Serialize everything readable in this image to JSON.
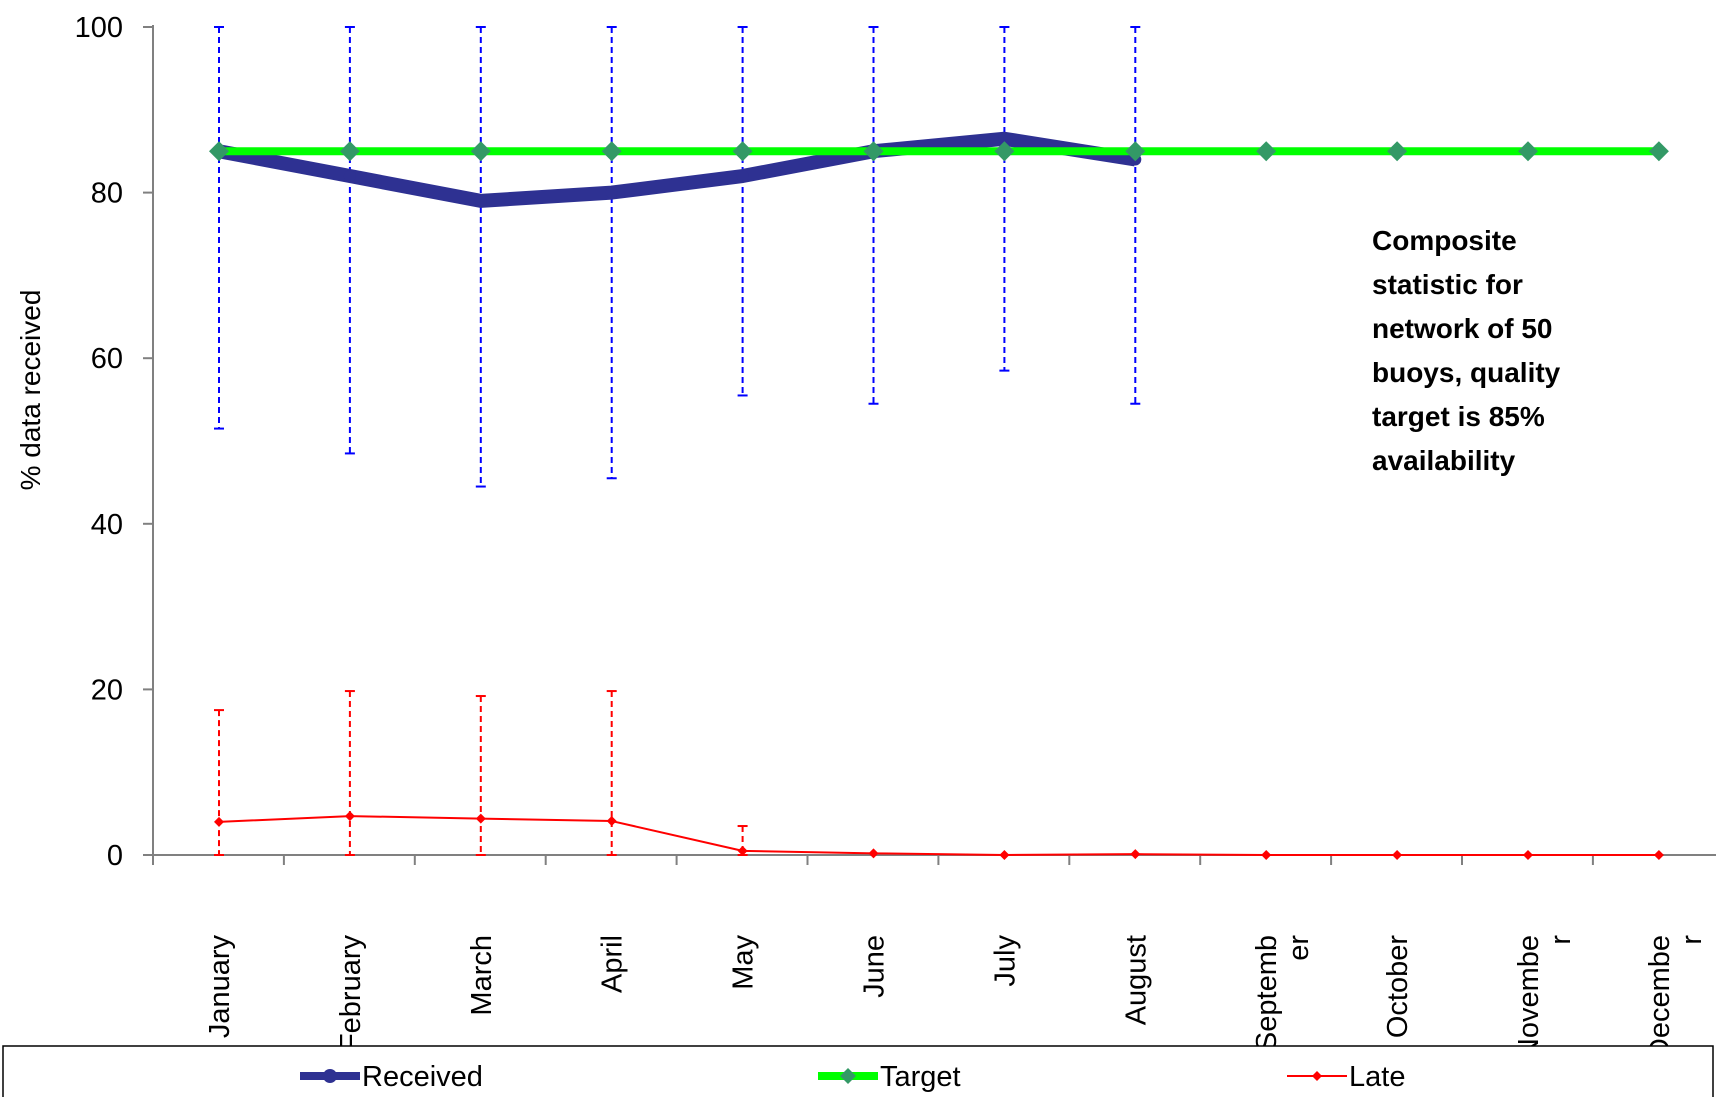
{
  "chart_data": {
    "type": "line",
    "categories": [
      "January",
      "February",
      "March",
      "April",
      "May",
      "June",
      "July",
      "August",
      "September",
      "October",
      "November",
      "December"
    ],
    "category_display": [
      [
        "January"
      ],
      [
        "February"
      ],
      [
        "March"
      ],
      [
        "April"
      ],
      [
        "May"
      ],
      [
        "June"
      ],
      [
        "July"
      ],
      [
        "August"
      ],
      [
        "Septemb",
        "er"
      ],
      [
        "October"
      ],
      [
        "Novembe",
        "r"
      ],
      [
        "Decembe",
        "r"
      ]
    ],
    "ylabel": "% data received",
    "xlabel": "",
    "ylim": [
      0,
      100
    ],
    "yticks": [
      "0",
      "20",
      "40",
      "60",
      "80",
      "100"
    ],
    "ytick_values": [
      0,
      20,
      40,
      60,
      80,
      100
    ],
    "grid": false,
    "legend_position": "bottom",
    "series": [
      {
        "name": "Received",
        "color": "#2e3192",
        "marker": "circle",
        "values": [
          85,
          82,
          79,
          80,
          82,
          85,
          86.5,
          84,
          null,
          null,
          null,
          null
        ],
        "error_bars": {
          "color": "#0000ff",
          "low": [
            51.5,
            48.5,
            44.5,
            45.5,
            55.5,
            54.5,
            58.5,
            54.5,
            null,
            null,
            null,
            null
          ],
          "high": [
            100,
            100,
            100,
            100,
            100,
            100,
            100,
            100,
            null,
            null,
            null,
            null
          ]
        }
      },
      {
        "name": "Target",
        "color": "#00ff00",
        "marker_color": "#339966",
        "marker": "diamond",
        "values": [
          85,
          85,
          85,
          85,
          85,
          85,
          85,
          85,
          85,
          85,
          85,
          85
        ]
      },
      {
        "name": "Late",
        "color": "#ff0000",
        "marker": "diamond",
        "values": [
          4,
          4.7,
          4.4,
          4.1,
          0.5,
          0.2,
          0,
          0.1,
          0,
          0,
          0,
          0
        ],
        "error_bars": {
          "color": "#ff0000",
          "low": [
            0,
            0,
            0,
            0,
            0,
            null,
            null,
            null,
            null,
            null,
            null,
            null
          ],
          "high": [
            17.5,
            19.8,
            19.2,
            19.8,
            3.5,
            null,
            null,
            null,
            null,
            null,
            null,
            null
          ]
        }
      }
    ],
    "annotation": [
      "Composite",
      "statistic for",
      "network of 50",
      "buoys, quality",
      "target is 85%",
      "availability"
    ]
  }
}
